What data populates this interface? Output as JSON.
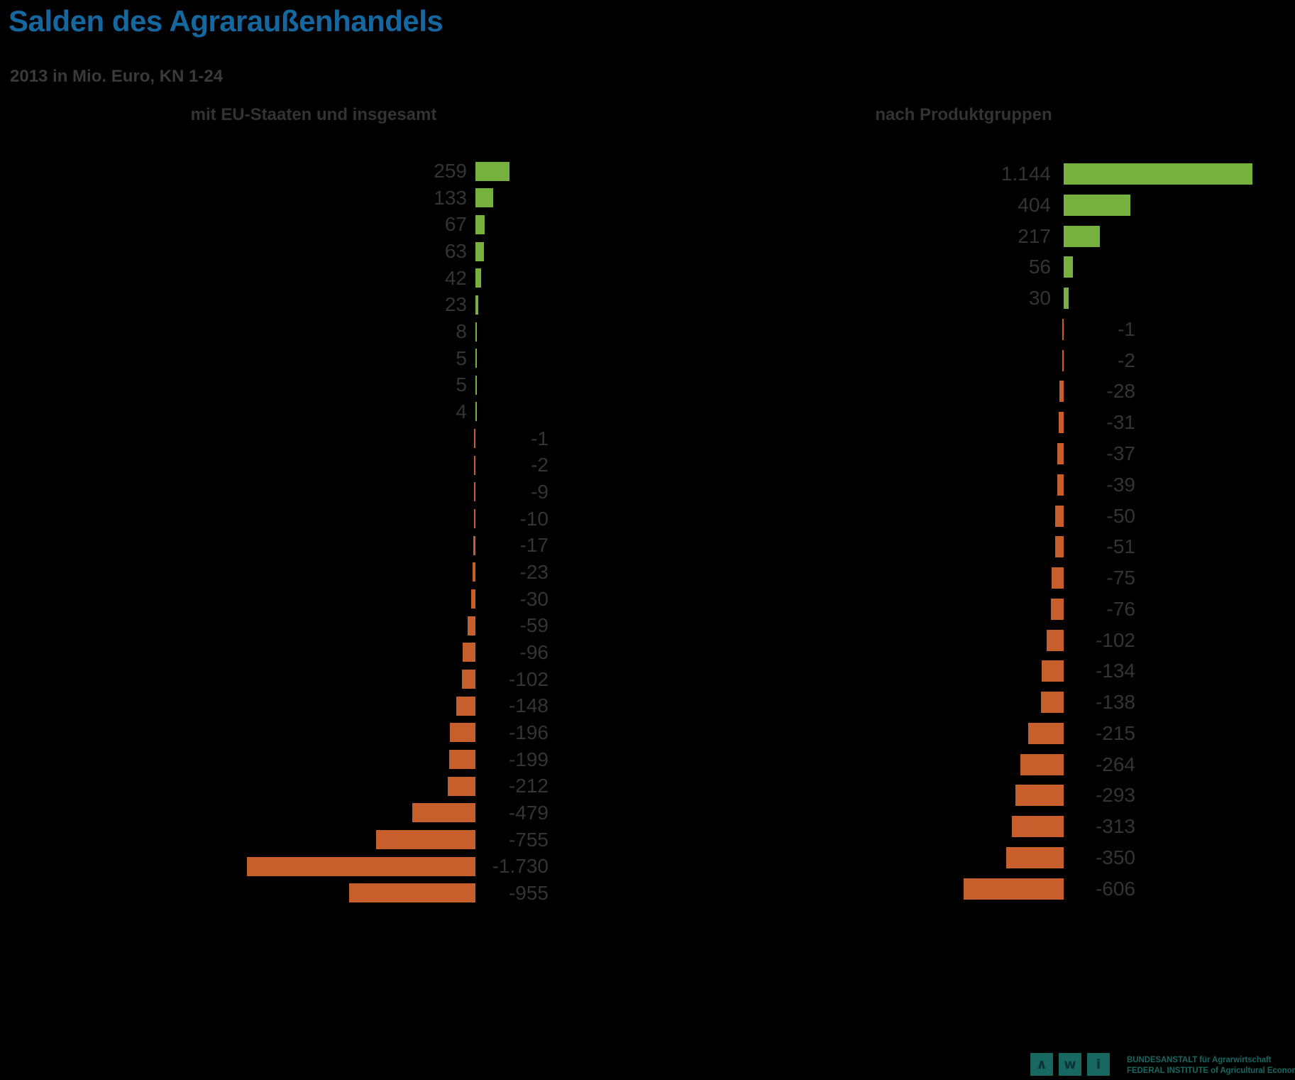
{
  "page": {
    "background_color": "#000000",
    "title_color": "#1567A0",
    "text_color": "#343434"
  },
  "header": {
    "title": "Salden des Agraraußenhandels",
    "subtitle": "2013 in Mio. Euro, KN 1-24"
  },
  "chart_data": [
    {
      "type": "bar",
      "orientation": "horizontal",
      "title": "mit EU-Staaten und insgesamt",
      "unit": "Mio. Euro",
      "positive_color": "#76B13E",
      "negative_color": "#C65F2C",
      "values": [
        259,
        133,
        67,
        63,
        42,
        23,
        8,
        5,
        5,
        4,
        -1,
        -2,
        -9,
        -10,
        -17,
        -23,
        -30,
        -59,
        -96,
        -102,
        -148,
        -196,
        -199,
        -212,
        -479,
        -755,
        -1730,
        -955
      ],
      "labels": [
        "259",
        "133",
        "67",
        "63",
        "42",
        "23",
        "8",
        "5",
        "5",
        "4",
        "-1",
        "-2",
        "-9",
        "-10",
        "-17",
        "-23",
        "-30",
        "-59",
        "-96",
        "-102",
        "-148",
        "-196",
        "-199",
        "-212",
        "-479",
        "-755",
        "-1.730",
        "-955"
      ],
      "value_range": [
        -1730,
        259
      ]
    },
    {
      "type": "bar",
      "orientation": "horizontal",
      "title": "nach Produktgruppen",
      "unit": "Mio. Euro",
      "positive_color": "#76B13E",
      "negative_color": "#C65F2C",
      "values": [
        1144,
        404,
        217,
        56,
        30,
        -1,
        -2,
        -28,
        -31,
        -37,
        -39,
        -50,
        -51,
        -75,
        -76,
        -102,
        -134,
        -138,
        -215,
        -264,
        -293,
        -313,
        -350,
        -606
      ],
      "labels": [
        "1.144",
        "404",
        "217",
        "56",
        "30",
        "-1",
        "-2",
        "-28",
        "-31",
        "-37",
        "-39",
        "-50",
        "-51",
        "-75",
        "-76",
        "-102",
        "-134",
        "-138",
        "-215",
        "-264",
        "-293",
        "-313",
        "-350",
        "-606"
      ],
      "value_range": [
        -606,
        1144
      ]
    }
  ],
  "logo": {
    "letters": [
      "∧",
      "w",
      "i"
    ],
    "square_color": "#176860",
    "letter_color": "#0D3339",
    "text_color": "#176860",
    "line1": "BUNDESANSTALT für Agrarwirtschaft",
    "line2": "FEDERAL INSTITUTE of Agricultural Economics"
  }
}
